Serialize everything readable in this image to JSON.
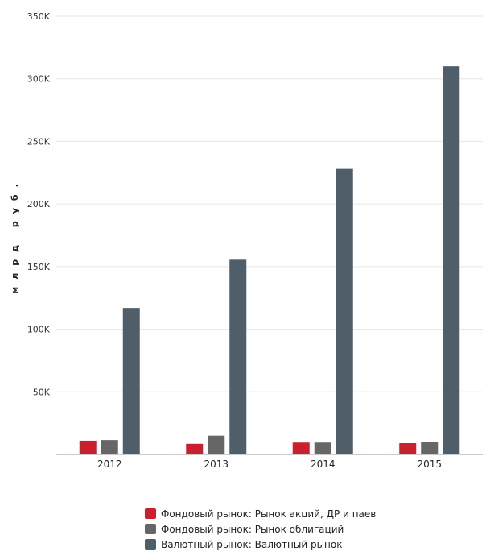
{
  "chart_data": {
    "type": "bar",
    "categories": [
      "2012",
      "2013",
      "2014",
      "2015"
    ],
    "series": [
      {
        "name": "Фондовый рынок: Рынок акций, ДР и паев",
        "color": "#c8202f",
        "values": [
          11000,
          8500,
          9500,
          9000
        ]
      },
      {
        "name": "Фондовый рынок: Рынок облигаций",
        "color": "#666666",
        "values": [
          11500,
          15000,
          9500,
          10000
        ]
      },
      {
        "name": "Валютный рынок: Валютный рынок",
        "color": "#4f5e69",
        "values": [
          117000,
          155500,
          228000,
          310000
        ]
      }
    ],
    "ylabel": "млрд руб.",
    "ylim": [
      0,
      350000
    ],
    "yticks": [
      {
        "value": 50000,
        "label": "50K"
      },
      {
        "value": 100000,
        "label": "100K"
      },
      {
        "value": 150000,
        "label": "150K"
      },
      {
        "value": 200000,
        "label": "200K"
      },
      {
        "value": 250000,
        "label": "250K"
      },
      {
        "value": 300000,
        "label": "300K"
      },
      {
        "value": 350000,
        "label": "350K"
      }
    ],
    "grid": true,
    "legend_position": "bottom"
  }
}
